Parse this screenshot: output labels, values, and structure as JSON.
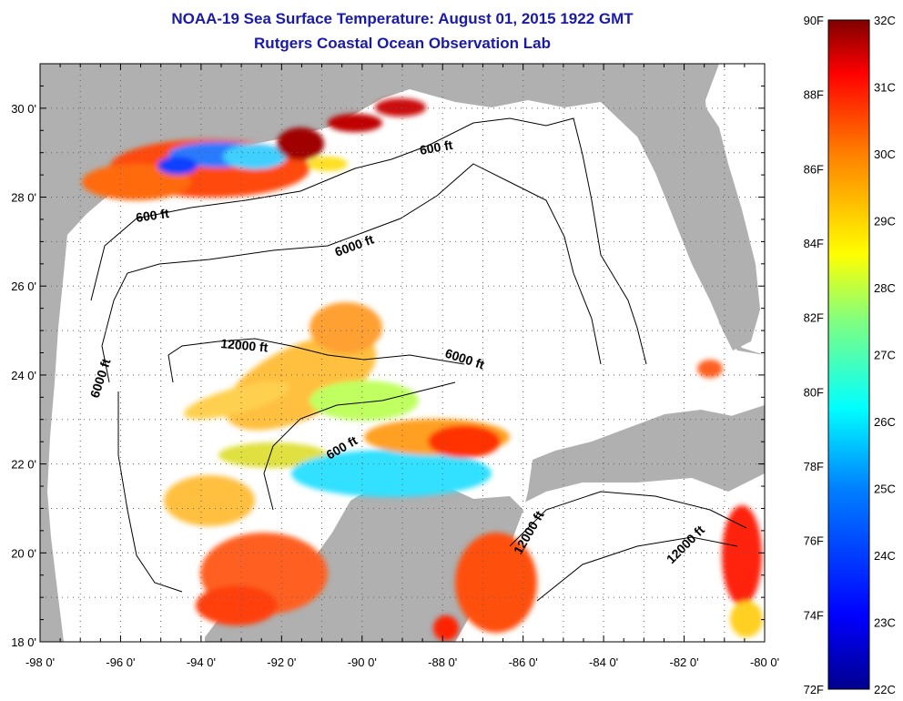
{
  "title": "NOAA-19 Sea Surface Temperature:  August 01, 2015 1922 GMT",
  "subtitle": "Rutgers Coastal Ocean Observation Lab",
  "map": {
    "lon_range": [
      -98,
      -80
    ],
    "lat_range": [
      18,
      31
    ],
    "lon_ticks": [
      "-98 0'",
      "-96 0'",
      "-94 0'",
      "-92 0'",
      "-90 0'",
      "-88 0'",
      "-86 0'",
      "-84 0'",
      "-82 0'",
      "-80 0'"
    ],
    "lat_ticks": [
      "18 0'",
      "20 0'",
      "22 0'",
      "24 0'",
      "26 0'",
      "28 0'",
      "30 0'"
    ],
    "contour_labels": [
      "600 ft",
      "600 ft",
      "6000 ft",
      "12000 ft",
      "6000 ft",
      "6000 ft",
      "600 ft",
      "12000 ft",
      "12000 ft"
    ],
    "colors": {
      "land": "#b0b0b0",
      "no_data": "#ffffff",
      "contour": "#000000"
    }
  },
  "colorbar": {
    "f_labels": [
      "90F",
      "88F",
      "86F",
      "84F",
      "82F",
      "80F",
      "78F",
      "76F",
      "74F",
      "72F"
    ],
    "c_labels": [
      "32C",
      "31C",
      "30C",
      "29C",
      "28C",
      "27C",
      "26C",
      "25C",
      "24C",
      "23C",
      "22C"
    ],
    "range_c": [
      22,
      32
    ],
    "range_f": [
      72,
      90
    ],
    "colormap": [
      "#00008f",
      "#0000ff",
      "#0080ff",
      "#00ffff",
      "#80ff80",
      "#ffff00",
      "#ff8000",
      "#ff0000",
      "#800000"
    ]
  }
}
